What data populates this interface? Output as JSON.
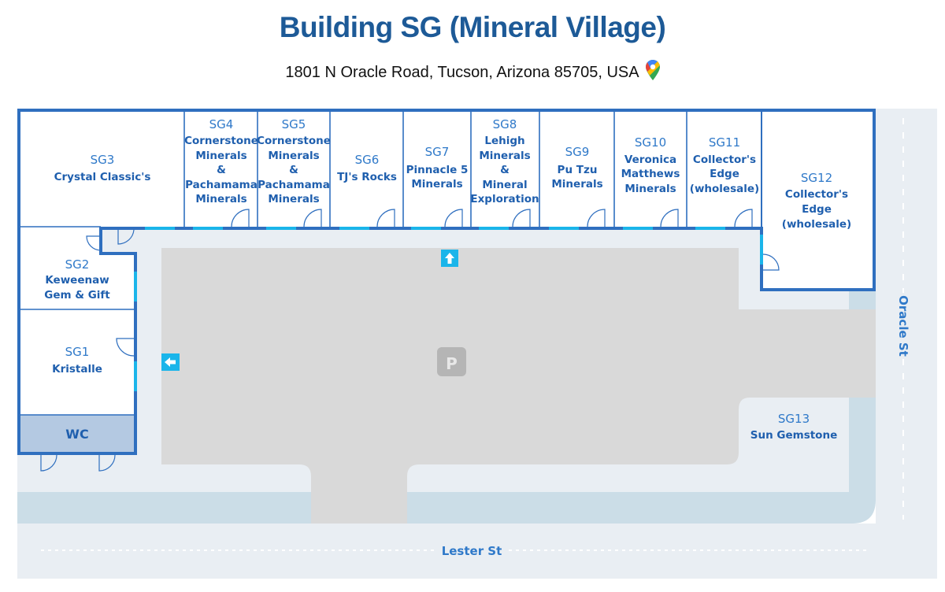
{
  "header": {
    "title": "Building SG (Mineral Village)",
    "address": "1801 N Oracle Road, Tucson, Arizona 85705, USA",
    "address_icon": "google-maps-pin-icon"
  },
  "colors": {
    "wall": "#2f6fbf",
    "entrance": "#1ab5ea",
    "parking": "#d9d9d9",
    "sidewalk": "#e9eef3",
    "road": "#cbdde7",
    "wc": "#b4c9e2",
    "title": "#1d5a97"
  },
  "units": [
    {
      "code": "SG1",
      "name": [
        "Kristalle"
      ]
    },
    {
      "code": "SG2",
      "name": [
        "Keweenaw",
        "Gem & Gift"
      ]
    },
    {
      "code": "SG3",
      "name": [
        "Crystal Classic's"
      ]
    },
    {
      "code": "SG4",
      "name": [
        "Cornerstone",
        "Minerals",
        "&",
        "Pachamama",
        "Minerals"
      ]
    },
    {
      "code": "SG5",
      "name": [
        "Cornerstone",
        "Minerals",
        "&",
        "Pachamama",
        "Minerals"
      ]
    },
    {
      "code": "SG6",
      "name": [
        "TJ's Rocks"
      ]
    },
    {
      "code": "SG7",
      "name": [
        "Pinnacle 5",
        "Minerals"
      ]
    },
    {
      "code": "SG8",
      "name": [
        "Lehigh",
        "Minerals",
        "&",
        "Mineral",
        "Exploration"
      ]
    },
    {
      "code": "SG9",
      "name": [
        "Pu Tzu",
        "Minerals"
      ]
    },
    {
      "code": "SG10",
      "name": [
        "Veronica",
        "Matthews",
        "Minerals"
      ]
    },
    {
      "code": "SG11",
      "name": [
        "Collector's",
        "Edge",
        "(wholesale)"
      ]
    },
    {
      "code": "SG12",
      "name": [
        "Collector's",
        "Edge",
        "(wholesale)"
      ]
    },
    {
      "code": "SG13",
      "name": [
        "Sun Gemstone"
      ]
    }
  ],
  "wc_label": "WC",
  "parking_label": "P",
  "streets": {
    "south": "Lester St",
    "east": "Oracle St"
  },
  "icons": {
    "entrance_up": "arrow-up-icon",
    "entrance_left": "arrow-left-icon",
    "parking": "parking-icon"
  }
}
